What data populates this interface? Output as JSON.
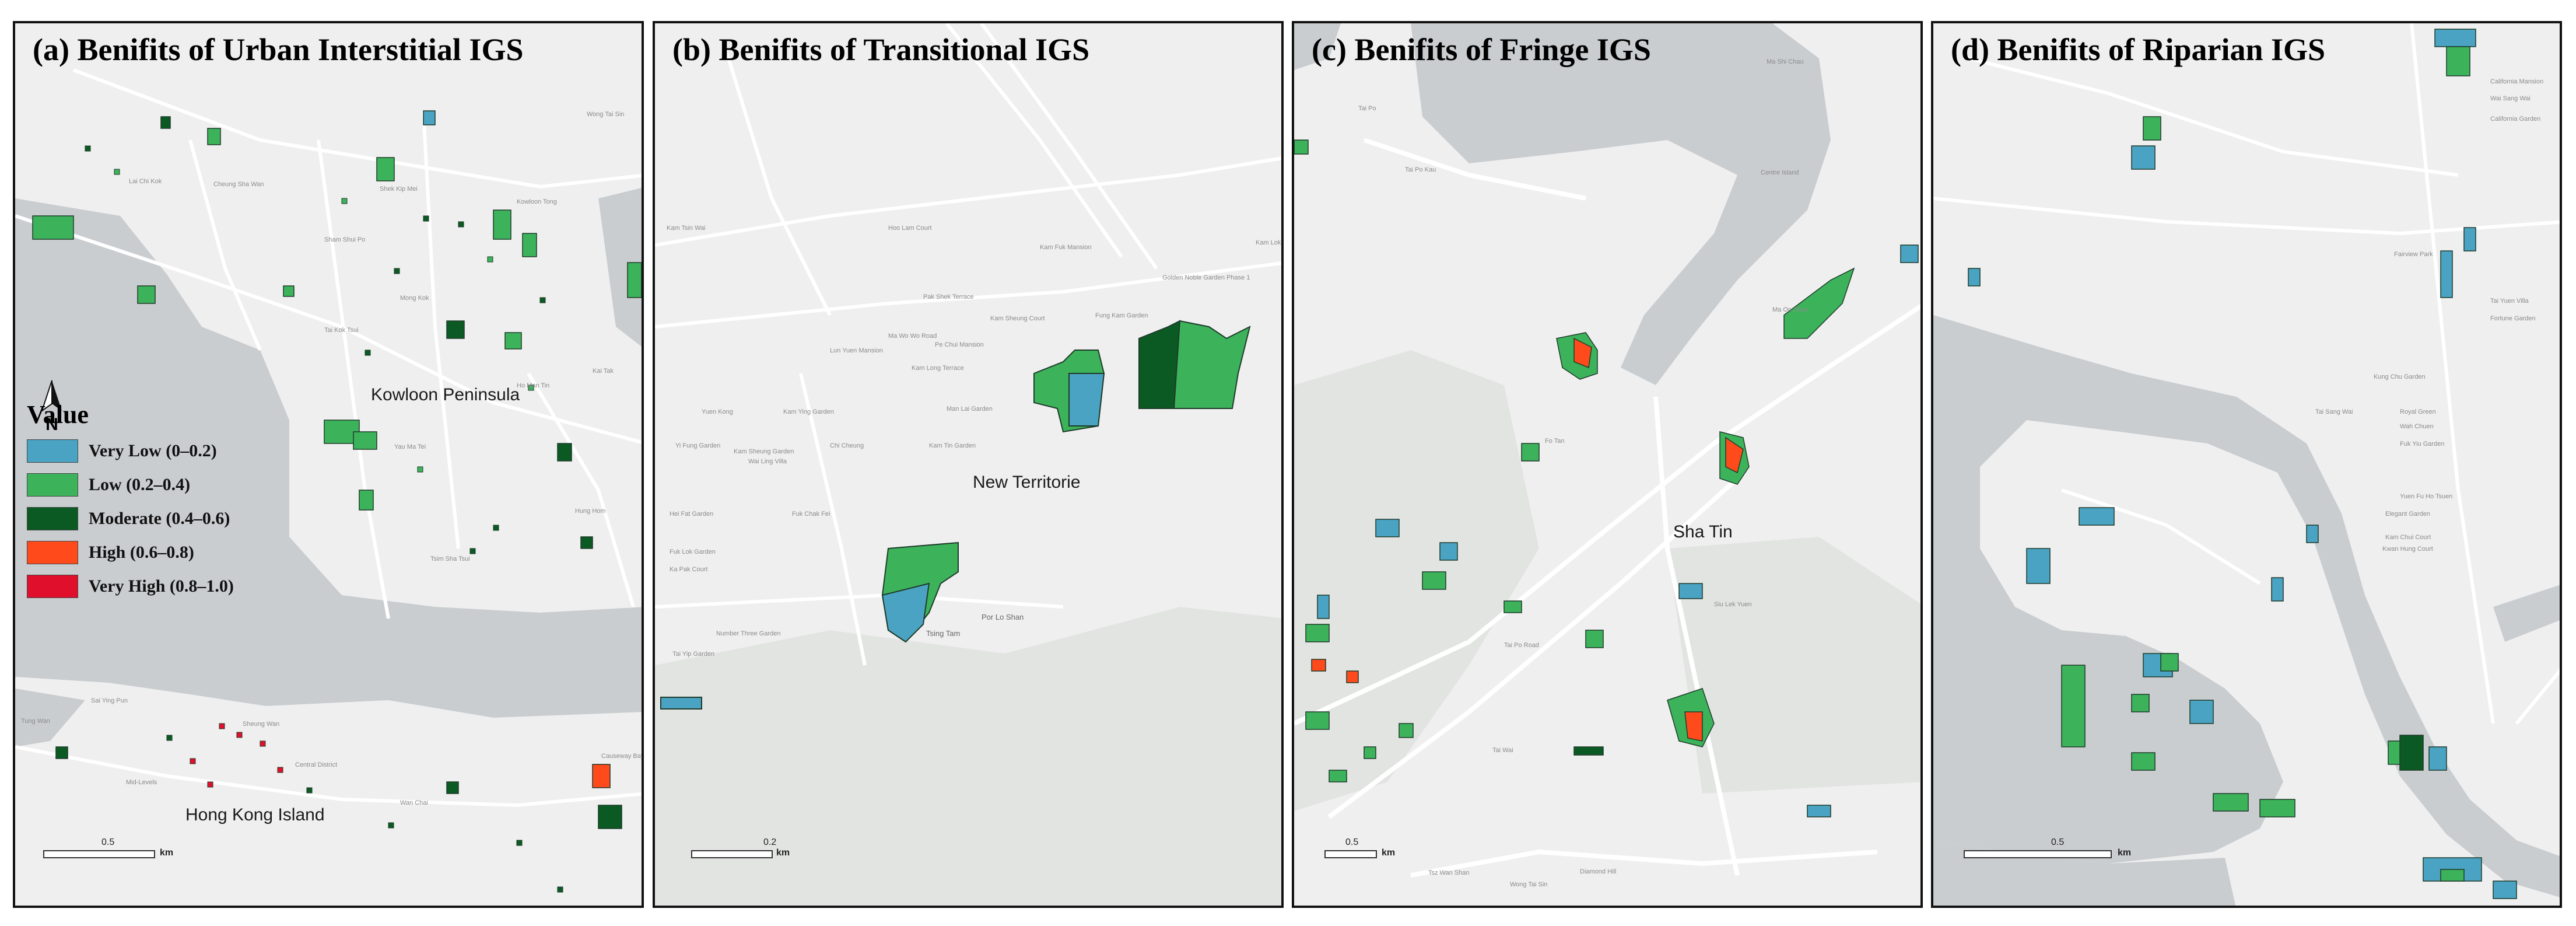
{
  "colors": {
    "very_low": "#4aa3c2",
    "low": "#3cb35a",
    "moderate": "#0b5a23",
    "high": "#ff4a1c",
    "very_high": "#e0102c",
    "land": "#efefef",
    "water": "#c9cdd0",
    "road": "#ffffff",
    "outline": "#1e3a2a"
  },
  "north_arrow": {
    "label": "N",
    "icon": "north-arrow-icon"
  },
  "legend": {
    "title": "Value",
    "items": [
      {
        "key": "very_low",
        "label": "Very Low  (0–0.2)"
      },
      {
        "key": "low",
        "label": "Low  (0.2–0.4)"
      },
      {
        "key": "moderate",
        "label": "Moderate  (0.4–0.6)"
      },
      {
        "key": "high",
        "label": "High  (0.6–0.8)"
      },
      {
        "key": "very_high",
        "label": "Very High  (0.8–1.0)"
      }
    ]
  },
  "panels": [
    {
      "title": "(a) Benifits of Urban Interstitial IGS",
      "scale": {
        "value": "0.5",
        "unit": "km"
      },
      "places": {
        "major": [
          "Kowloon Peninsula",
          "Hong Kong Island"
        ],
        "minor": [
          "Lai Chi Kok",
          "Cheung Sha Wan",
          "Shek Kip Mei",
          "Sham Shui Po",
          "Kowloon Tong",
          "Mong Kok",
          "Tai Kok Tsui",
          "Yau Ma Tei",
          "Ho Man Tin",
          "Hung Hom",
          "Tsim Sha Tsui",
          "Wong Tai Sin",
          "Sai Ying Pun",
          "Sheung Wan",
          "Central District",
          "Mid-Levels",
          "Wan Chai",
          "Causeway Bay",
          "Tung Wan",
          "Kai Tak"
        ]
      }
    },
    {
      "title": "(b) Benifits of Transitional IGS",
      "scale": {
        "value": "0.2",
        "unit": "km"
      },
      "places": {
        "major": [
          "New Territorie"
        ],
        "minor": [
          "Kam Tsin Wai",
          "Hoo Lam Court",
          "Kam Fuk Mansion",
          "Kam Lok Garden",
          "Ma Wo Wo Road",
          "Pak Shek Terrace",
          "Kam Sheung Court",
          "Golden Noble Garden Phase 1",
          "Fung Kam Garden",
          "Lun Yuen Mansion",
          "Pe Chui Mansion",
          "Kam Long Terrace",
          "Yuen Kong",
          "Kam Ying Garden",
          "Man Lai Garden",
          "Kam Tin Garden",
          "Yi Fung Garden",
          "Kam Sheung Garden",
          "Chi Cheung",
          "Wai Ling Villa",
          "Fuk Chak Fei",
          "Hei Fat Garden",
          "Fuk Lok Garden",
          "Ka Pak Court",
          "Tsing Tam",
          "Por Lo Shan",
          "Number Three Garden",
          "Tai Yip Garden"
        ]
      }
    },
    {
      "title": "(c) Benifits of Fringe IGS",
      "scale": {
        "value": "0.5",
        "unit": "km"
      },
      "places": {
        "major": [
          "Sha Tin"
        ],
        "minor": [
          "Tai Po",
          "Tai Po Kau",
          "Ma On Shan",
          "Centre Island",
          "Ma Shi Chau",
          "Fo Tan",
          "Siu Lek Yuen",
          "Tai Wai",
          "Tsz Wan Shan",
          "Wong Tai Sin",
          "Diamond Hill",
          "Tai Po Road"
        ]
      }
    },
    {
      "title": "(d) Benifits of Riparian IGS",
      "scale": {
        "value": "0.5",
        "unit": "km"
      },
      "places": {
        "major": [],
        "minor": [
          "California Mansion",
          "Wai Sang Wai",
          "California Garden",
          "Fairview Park",
          "Tai Yuen Villa",
          "Fortune Garden",
          "Kung Chu Garden",
          "Tai Sang Wai",
          "Royal Green",
          "Wah Chuen",
          "Fuk Yiu Garden",
          "Yuen Fu Ho Tsuen",
          "Elegant Garden",
          "Kam Chui Court",
          "Kwan Hung Court"
        ]
      }
    }
  ]
}
